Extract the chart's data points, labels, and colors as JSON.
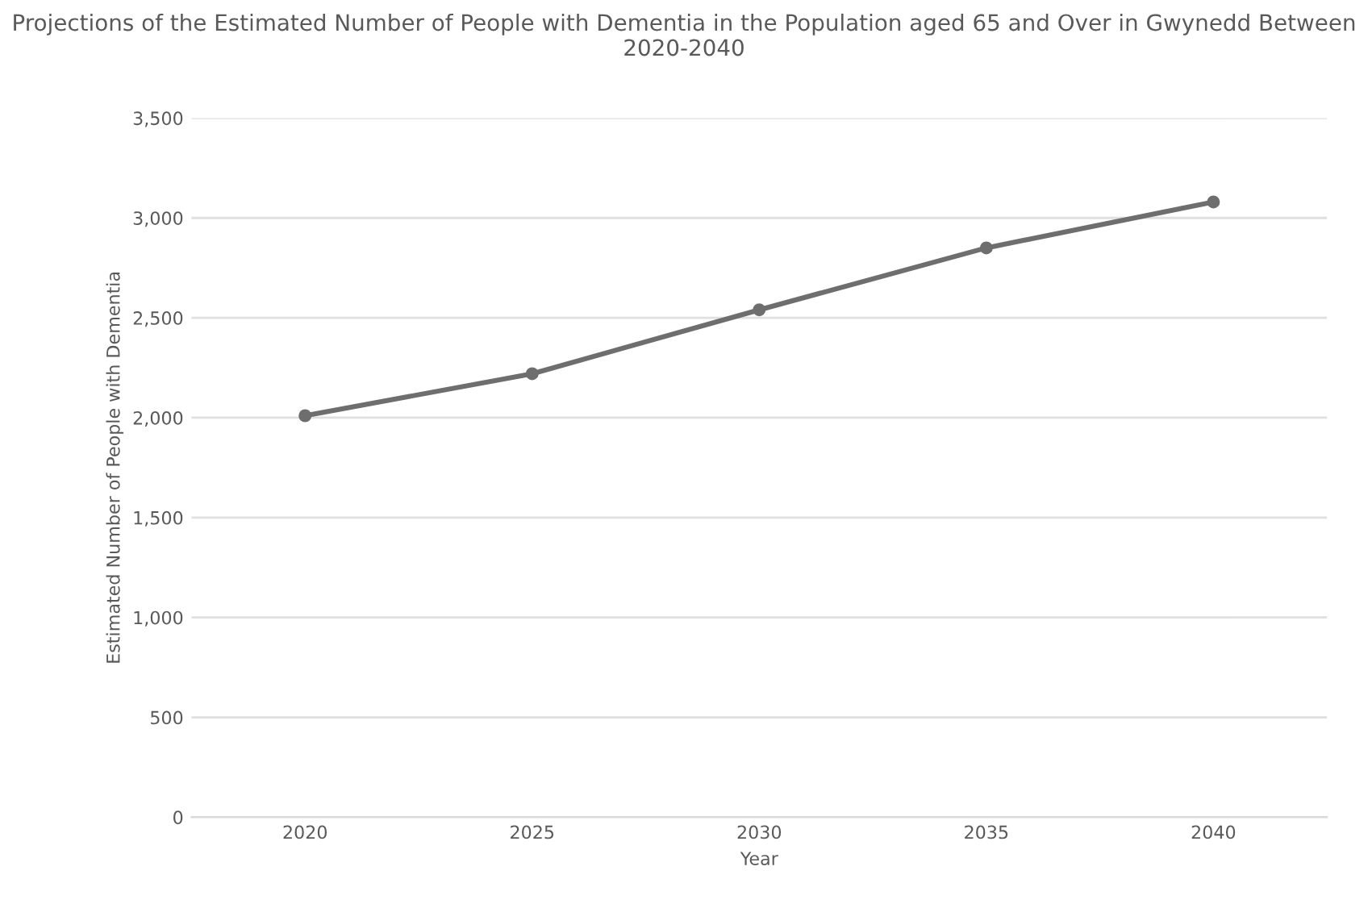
{
  "chart_data": {
    "type": "line",
    "title": "Projections of the Estimated Number of People with Dementia in the Population aged 65 and Over in Gwynedd Between 2020-2040",
    "xlabel": "Year",
    "ylabel": "Estimated Number of People with Dementia",
    "categories": [
      "2020",
      "2025",
      "2030",
      "2035",
      "2040"
    ],
    "series": [
      {
        "color": "#6e6e6e",
        "values": [
          2010,
          2220,
          2540,
          2850,
          3080
        ]
      }
    ],
    "ylim": [
      0,
      3500
    ],
    "yticks": [
      {
        "value": 0,
        "label": "0"
      },
      {
        "value": 500,
        "label": "500"
      },
      {
        "value": 1000,
        "label": "1,000"
      },
      {
        "value": 1500,
        "label": "1,500"
      },
      {
        "value": 2000,
        "label": "2,000"
      },
      {
        "value": 2500,
        "label": "2,500"
      },
      {
        "value": 3000,
        "label": "3,000"
      },
      {
        "value": 3500,
        "label": "3,500"
      }
    ],
    "grid": "y",
    "marker": "circle",
    "line_style": "solid"
  }
}
